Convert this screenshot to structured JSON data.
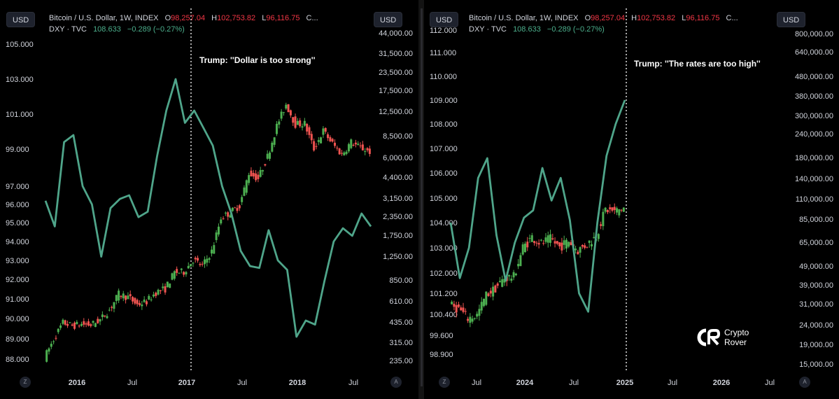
{
  "legend": {
    "btc_symbol": "Bitcoin / U.S. Dollar, 1W, INDEX",
    "o_label": "O",
    "o_value": "98,257.04",
    "h_label": "H",
    "h_value": "102,753.82",
    "l_label": "L",
    "l_value": "96,116.75",
    "c_label": "C...",
    "dxy_symbol": "DXY · TVC",
    "dxy_value": "108.633",
    "dxy_change": "−0.289 (−0.27%)"
  },
  "usd_button": "USD",
  "corner_left": "Z",
  "corner_right": "A",
  "colors": {
    "dxy_line": "#4fa58a",
    "up": "#4caf50",
    "down": "#ef5350",
    "background": "#000000"
  },
  "logo": {
    "line1": "Crypto",
    "line2": "Rover"
  },
  "chart_data": [
    {
      "type": "line",
      "annotation": "Trump: ''Dollar is too strong''",
      "x_ticks": [
        "2016",
        "Jul",
        "2017",
        "Jul",
        "2018",
        "Jul"
      ],
      "y_left_ticks": [
        "105.000",
        "103.000",
        "101.000",
        "99.000",
        "97.000",
        "96.000",
        "95.000",
        "94.000",
        "93.000",
        "92.000",
        "91.000",
        "90.000",
        "89.000",
        "88.000"
      ],
      "y_right_ticks": [
        "44,000.00",
        "31,500.00",
        "23,500.00",
        "17,500.00",
        "12,500.00",
        "8,500.00",
        "6,000.00",
        "4,400.00",
        "3,150.00",
        "2,350.00",
        "1,750.00",
        "1,250.00",
        "850.00",
        "610.00",
        "435.00",
        "315.00",
        "235.00"
      ],
      "series": [
        {
          "name": "DXY · TVC",
          "x": [
            "2015-10",
            "2015-11",
            "2015-12",
            "2016-01",
            "2016-02",
            "2016-03",
            "2016-04",
            "2016-05",
            "2016-06",
            "2016-07",
            "2016-08",
            "2016-09",
            "2016-10",
            "2016-11",
            "2016-12",
            "2017-01",
            "2017-02",
            "2017-03",
            "2017-04",
            "2017-05",
            "2017-06",
            "2017-07",
            "2017-08",
            "2017-09",
            "2017-10",
            "2017-11",
            "2017-12",
            "2018-01",
            "2018-02",
            "2018-03",
            "2018-04",
            "2018-05",
            "2018-06",
            "2018-07",
            "2018-08",
            "2018-09"
          ],
          "values": [
            96.2,
            94.8,
            99.4,
            99.8,
            97.0,
            96.0,
            93.2,
            95.8,
            96.3,
            96.5,
            95.3,
            95.6,
            98.6,
            101.2,
            103.0,
            100.5,
            101.2,
            100.2,
            99.2,
            97.0,
            95.5,
            93.5,
            92.7,
            92.6,
            94.6,
            93.0,
            92.5,
            89.1,
            89.9,
            89.7,
            91.9,
            94.0,
            94.7,
            94.3,
            95.5,
            94.8
          ]
        },
        {
          "name": "Bitcoin / U.S. Dollar",
          "x": [
            "2015-10",
            "2015-11",
            "2015-12",
            "2016-01",
            "2016-02",
            "2016-03",
            "2016-04",
            "2016-05",
            "2016-06",
            "2016-07",
            "2016-08",
            "2016-09",
            "2016-10",
            "2016-11",
            "2016-12",
            "2017-01",
            "2017-02",
            "2017-03",
            "2017-04",
            "2017-05",
            "2017-06",
            "2017-07",
            "2017-08",
            "2017-09",
            "2017-10",
            "2017-11",
            "2017-12",
            "2018-01",
            "2018-02",
            "2018-03",
            "2018-04",
            "2018-05",
            "2018-06",
            "2018-07",
            "2018-08",
            "2018-09"
          ],
          "values": [
            245,
            330,
            430,
            410,
            420,
            415,
            450,
            530,
            680,
            650,
            575,
            605,
            700,
            740,
            960,
            970,
            1180,
            1070,
            1350,
            2300,
            2500,
            2800,
            4700,
            4300,
            6100,
            9900,
            14000,
            10200,
            10300,
            6900,
            9200,
            7500,
            6300,
            7700,
            7000,
            6600
          ]
        }
      ]
    },
    {
      "type": "line",
      "annotation": "Trump: ''The rates are too high''",
      "x_ticks": [
        "Jul",
        "2024",
        "Jul",
        "2025",
        "Jul",
        "2026",
        "Jul"
      ],
      "y_left_ticks": [
        "112.000",
        "111.000",
        "110.000",
        "109.000",
        "108.000",
        "107.000",
        "106.000",
        "105.000",
        "104.000",
        "103.000",
        "102.000",
        "101.200",
        "100.400",
        "99.600",
        "98.900"
      ],
      "y_right_ticks": [
        "800,000.00",
        "640,000.00",
        "480,000.00",
        "380,000.00",
        "300,000.00",
        "240,000.00",
        "180,000.00",
        "140,000.00",
        "110,000.00",
        "85,000.00",
        "65,000.00",
        "49,000.00",
        "39,000.00",
        "31,000.00",
        "24,000.00",
        "19,000.00",
        "15,000.00"
      ],
      "series": [
        {
          "name": "DXY · TVC",
          "x": [
            "2023-06",
            "2023-07",
            "2023-08",
            "2023-09",
            "2023-10",
            "2023-11",
            "2023-12",
            "2024-01",
            "2024-02",
            "2024-03",
            "2024-04",
            "2024-05",
            "2024-06",
            "2024-07",
            "2024-08",
            "2024-09",
            "2024-10",
            "2024-11",
            "2024-12",
            "2025-01"
          ],
          "values": [
            104.0,
            101.8,
            103.0,
            105.8,
            106.6,
            103.5,
            101.7,
            103.2,
            104.2,
            104.5,
            106.2,
            104.9,
            105.8,
            104.1,
            101.2,
            100.5,
            104.0,
            106.7,
            108.0,
            109.0
          ]
        },
        {
          "name": "Bitcoin / U.S. Dollar",
          "x": [
            "2023-06",
            "2023-07",
            "2023-08",
            "2023-09",
            "2023-10",
            "2023-11",
            "2023-12",
            "2024-01",
            "2024-02",
            "2024-03",
            "2024-04",
            "2024-05",
            "2024-06",
            "2024-07",
            "2024-08",
            "2024-09",
            "2024-10",
            "2024-11",
            "2024-12",
            "2025-01"
          ],
          "values": [
            30500,
            29200,
            26000,
            27000,
            34500,
            37500,
            42500,
            43000,
            61000,
            69000,
            64000,
            67500,
            61500,
            66000,
            59000,
            63500,
            70000,
            96000,
            93500,
            98000
          ]
        }
      ]
    }
  ]
}
